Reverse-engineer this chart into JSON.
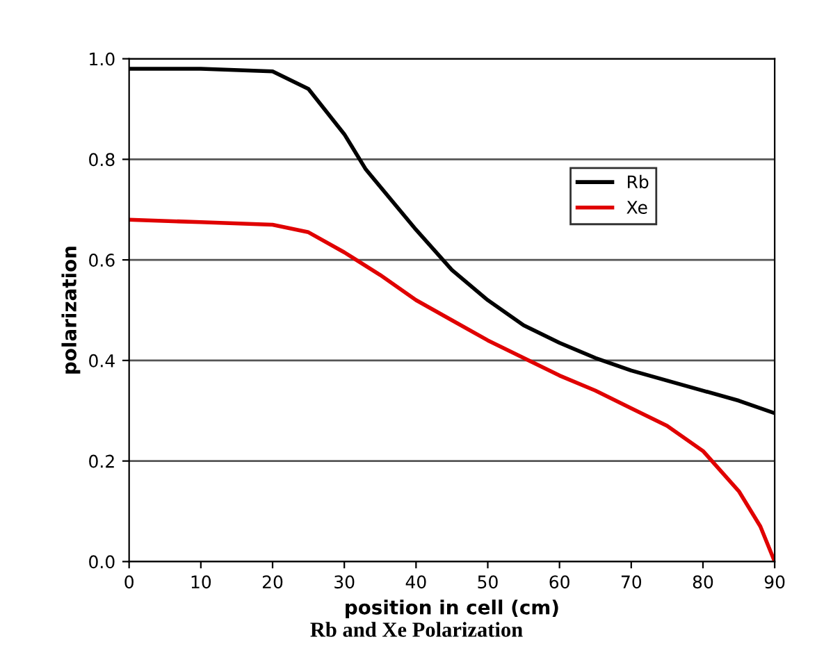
{
  "chart_data": {
    "type": "line",
    "xlabel": "position in cell (cm)",
    "ylabel": "polarization",
    "annotations": [
      "Rb and Xe Polarization"
    ],
    "xlim": [
      0,
      90
    ],
    "xticks": [
      0,
      10,
      20,
      30,
      40,
      50,
      60,
      70,
      80,
      90
    ],
    "ylim": [
      0,
      1
    ],
    "yticks": [
      {
        "value": 0,
        "label": "0.0"
      },
      {
        "value": 0.2,
        "label": "0.2"
      },
      {
        "value": 0.4,
        "label": "0.4"
      },
      {
        "value": 0.6,
        "label": "0.6"
      },
      {
        "value": 0.8,
        "label": "0.8"
      },
      {
        "value": 1,
        "label": "1.0"
      }
    ],
    "grid": "y",
    "legend": "upper right",
    "marker": "none",
    "line_style": "solid",
    "series": [
      {
        "name": "Rb",
        "color": "#000000",
        "x": [
          0,
          10,
          20,
          25,
          30,
          33,
          40,
          45,
          50,
          55,
          60,
          65,
          70,
          75,
          80,
          85,
          90
        ],
        "values": [
          0.98,
          0.98,
          0.975,
          0.94,
          0.85,
          0.78,
          0.66,
          0.58,
          0.52,
          0.47,
          0.435,
          0.405,
          0.38,
          0.36,
          0.34,
          0.32,
          0.295
        ]
      },
      {
        "name": "Xe",
        "color": "#e00000",
        "x": [
          0,
          10,
          20,
          25,
          30,
          35,
          40,
          45,
          50,
          55,
          60,
          65,
          70,
          75,
          80,
          85,
          88,
          90
        ],
        "values": [
          0.68,
          0.675,
          0.67,
          0.655,
          0.615,
          0.57,
          0.52,
          0.48,
          0.44,
          0.405,
          0.37,
          0.34,
          0.305,
          0.27,
          0.22,
          0.14,
          0.07,
          0.0
        ]
      }
    ]
  }
}
